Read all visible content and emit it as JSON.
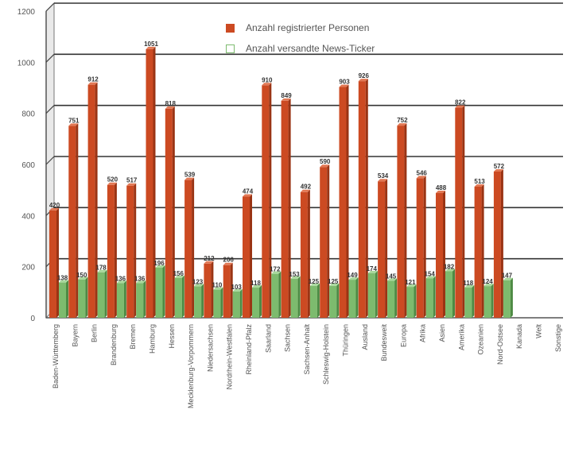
{
  "chart_data": {
    "type": "bar",
    "categories": [
      "Baden-Württemberg",
      "Bayern",
      "Berlin",
      "Brandenburg",
      "Bremen",
      "Hamburg",
      "Hessen",
      "Mecklenburg-Vorpommern",
      "Niedersachsen",
      "Nordrhein-Westfalen",
      "Rheinland-Pfalz",
      "Saarland",
      "Sachsen",
      "Sachsen-Anhalt",
      "Schleswig-Holstein",
      "Thüringen",
      "Ausland",
      "Bundesweit",
      "Europa",
      "Afrika",
      "Asien",
      "Amerika",
      "Ozeanien",
      "Nord-Ostsee",
      "Kanada",
      "Welt",
      "Sonstige"
    ],
    "series": [
      {
        "name": "Anzahl registrierter Personen",
        "color": "#cc4a22",
        "values": [
          420,
          751,
          912,
          520,
          517,
          1051,
          818,
          539,
          212,
          206,
          474,
          910,
          849,
          492,
          590,
          903,
          926,
          534,
          752,
          546,
          488,
          822,
          513,
          572,
          0,
          0,
          0
        ]
      },
      {
        "name": "Anzahl versandte News-Ticker",
        "color": "#7dbb6e",
        "values": [
          138,
          150,
          178,
          136,
          136,
          196,
          156,
          123,
          110,
          103,
          118,
          172,
          153,
          125,
          125,
          149,
          174,
          145,
          121,
          154,
          182,
          118,
          124,
          147,
          0,
          0,
          0
        ]
      }
    ],
    "bar_labels_red": [
      "420",
      "751",
      "912",
      "520",
      "517",
      "1051",
      "818",
      "539",
      "212",
      "206",
      "474",
      "910",
      "849",
      "492",
      "590",
      "903",
      "926",
      "534",
      "752",
      "546",
      "488",
      "822",
      "513",
      "572"
    ],
    "bar_labels_green": [
      "138",
      "150",
      "178",
      "136",
      "136",
      "196",
      "156",
      "123",
      "110",
      "103",
      "118",
      "172",
      "153",
      "125",
      "125",
      "149",
      "174",
      "145",
      "121",
      "154",
      "182",
      "118",
      "124",
      "147"
    ],
    "yticks": [
      "0",
      "200",
      "400",
      "600",
      "800",
      "1000",
      "1200"
    ],
    "ylim": [
      0,
      1200
    ],
    "grid": true,
    "legend_position": "top-center"
  }
}
